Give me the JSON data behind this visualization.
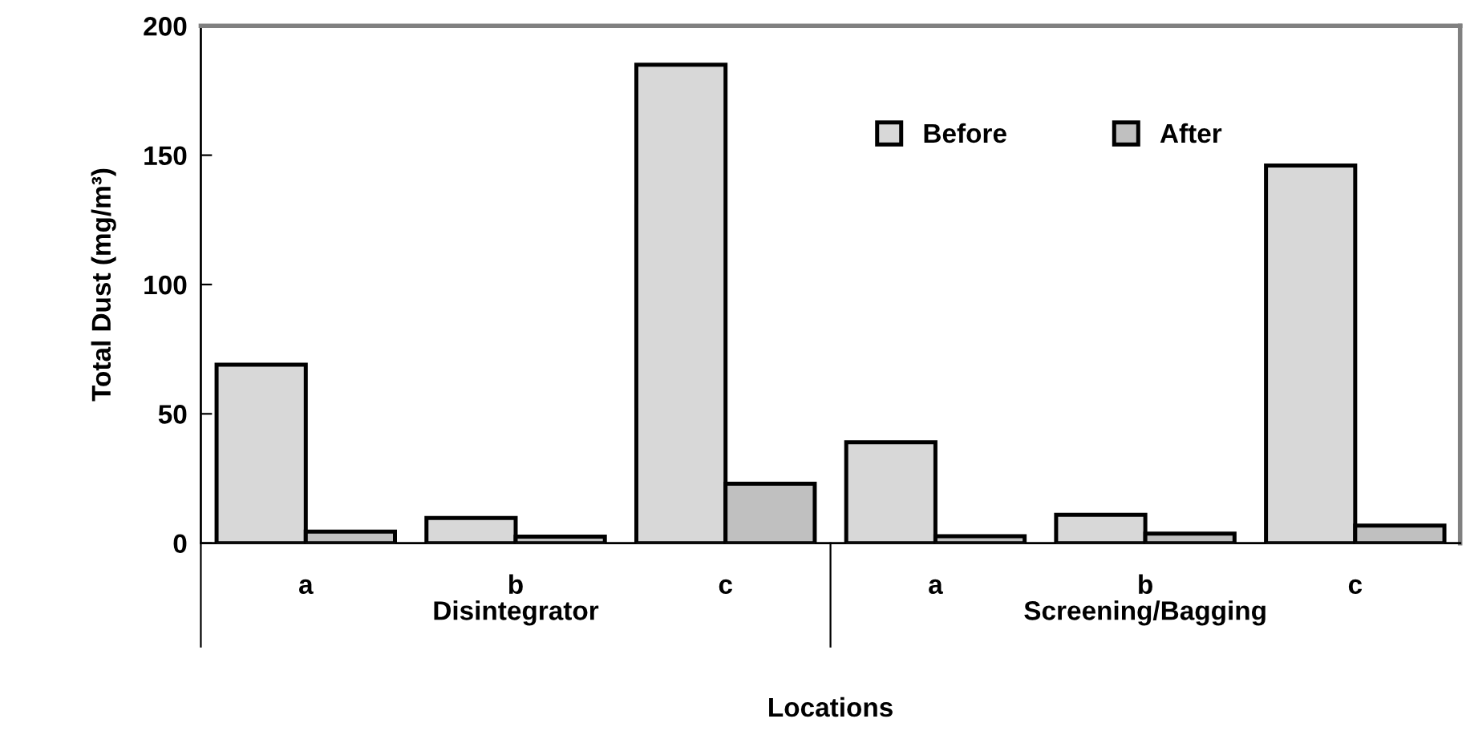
{
  "chart_data": {
    "type": "bar",
    "xlabel": "Locations",
    "ylabel": "Total Dust (mg/m³)",
    "categories": [
      "a",
      "b",
      "c",
      "a",
      "b",
      "c"
    ],
    "annotations": [
      "Disintegrator",
      "Screening/Bagging"
    ],
    "series": [
      {
        "name": "Before",
        "color": "#d8d8d8",
        "values": [
          69,
          9.7,
          185,
          39,
          11,
          146
        ]
      },
      {
        "name": "After",
        "color": "#c0c0c0",
        "values": [
          4.5,
          2.5,
          23,
          2.7,
          3.7,
          6.8
        ]
      }
    ],
    "ylim": [
      0,
      200
    ],
    "yticks": [
      0,
      50,
      100,
      150,
      200
    ],
    "grid": false,
    "legend": "top right"
  }
}
